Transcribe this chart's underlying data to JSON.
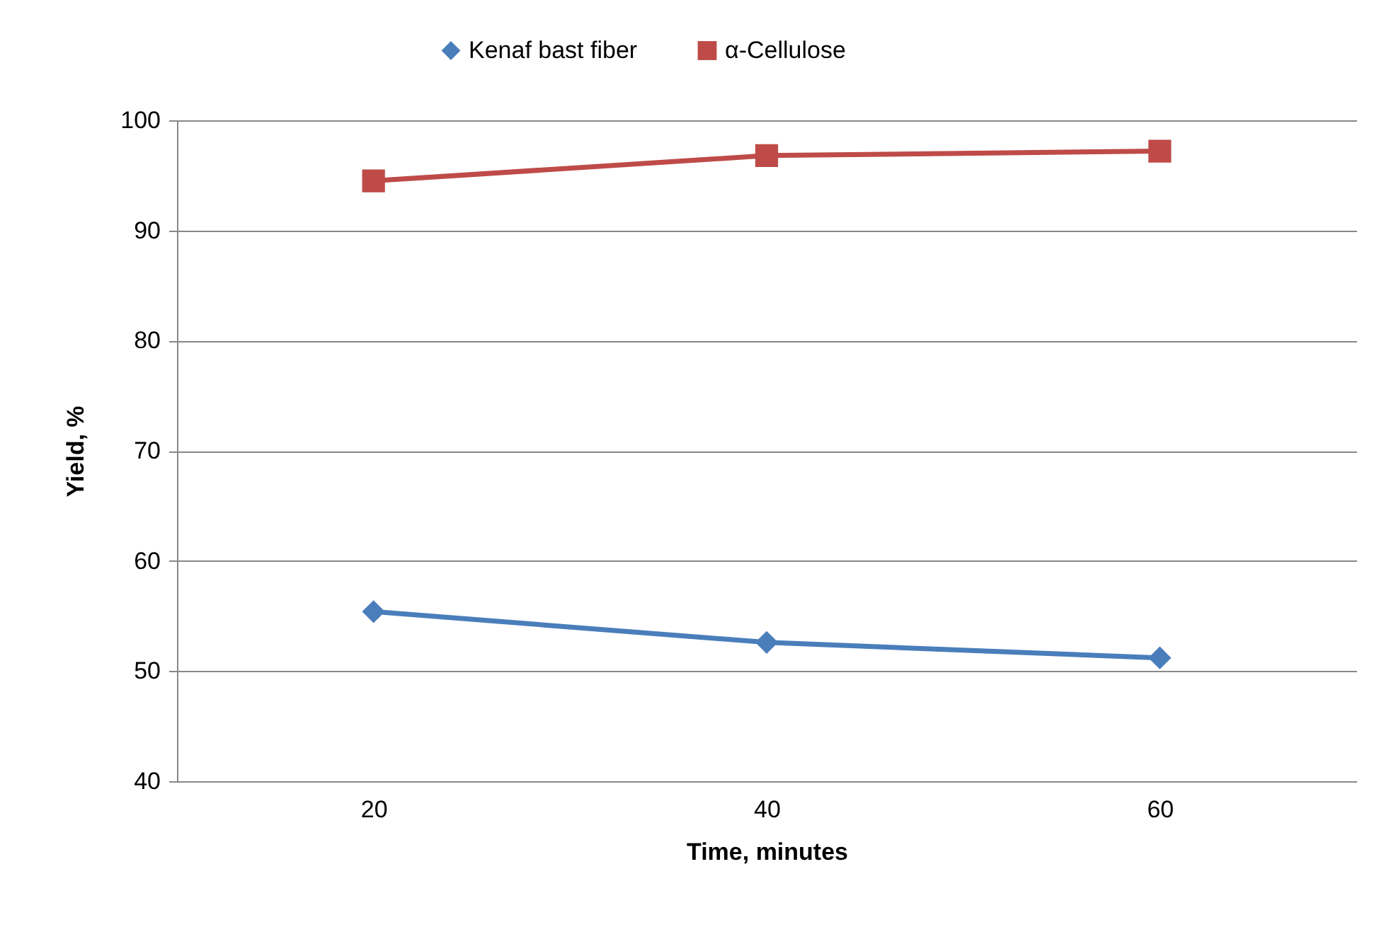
{
  "chart_data": {
    "type": "line",
    "xlabel": "Time, minutes",
    "ylabel": "Yield, %",
    "categories": [
      "20",
      "40",
      "60"
    ],
    "series": [
      {
        "name": "Kenaf bast fiber",
        "color": "#4a7ebb",
        "marker": "diamond",
        "values": [
          55.4,
          52.6,
          51.2
        ]
      },
      {
        "name": "α-Cellulose",
        "color": "#be4b48",
        "marker": "square",
        "values": [
          94.5,
          96.8,
          97.2
        ]
      }
    ],
    "ylim": [
      40,
      100
    ],
    "yticks": [
      40,
      50,
      60,
      70,
      80,
      90,
      100
    ],
    "grid": "y",
    "legend": "top",
    "line_style": "solid"
  }
}
